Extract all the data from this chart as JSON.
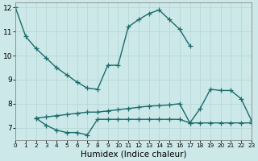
{
  "xlabel": "Humidex (Indice chaleur)",
  "bg_color": "#cce8e8",
  "grid_color": "#b8d8d8",
  "line_color": "#1a6b6b",
  "line1_x": [
    0,
    1,
    2,
    3,
    4,
    5,
    6,
    7,
    8,
    9,
    10,
    11,
    12,
    13,
    14,
    15,
    16,
    17
  ],
  "line1_y": [
    12.0,
    10.8,
    10.3,
    9.9,
    9.5,
    9.2,
    8.9,
    8.65,
    8.6,
    9.6,
    9.6,
    11.2,
    11.5,
    11.75,
    11.9,
    11.5,
    11.1,
    10.4
  ],
  "line2_x": [
    2,
    3,
    4,
    5,
    6,
    7,
    8,
    9,
    10,
    11,
    12,
    13,
    14,
    15,
    16,
    17,
    18,
    19,
    20,
    21,
    22,
    23
  ],
  "line2_y": [
    7.4,
    7.1,
    6.9,
    6.8,
    6.8,
    6.7,
    7.35,
    7.35,
    7.35,
    7.35,
    7.35,
    7.35,
    7.35,
    7.35,
    7.35,
    7.2,
    7.2,
    7.2,
    7.2,
    7.2,
    7.2,
    7.2
  ],
  "line3_x": [
    2,
    3,
    4,
    5,
    6,
    7,
    8,
    9,
    10,
    11,
    12,
    13,
    14,
    15,
    16,
    17,
    18,
    19,
    20,
    21,
    22,
    23
  ],
  "line3_y": [
    7.4,
    7.45,
    7.5,
    7.55,
    7.6,
    7.65,
    7.65,
    7.7,
    7.75,
    7.8,
    7.85,
    7.9,
    7.92,
    7.95,
    8.0,
    7.2,
    7.8,
    8.6,
    8.55,
    8.55,
    8.2,
    7.3
  ],
  "xlim": [
    0,
    23
  ],
  "ylim": [
    6.5,
    12.2
  ],
  "yticks": [
    7,
    8,
    9,
    10,
    11,
    12
  ],
  "xticks": [
    0,
    1,
    2,
    3,
    4,
    5,
    6,
    7,
    8,
    9,
    10,
    11,
    12,
    13,
    14,
    15,
    16,
    17,
    18,
    19,
    20,
    21,
    22,
    23
  ],
  "marker": "+",
  "markersize": 4,
  "linewidth": 1.0,
  "xlabel_fontsize": 7.5,
  "tick_fontsize": 6.5
}
